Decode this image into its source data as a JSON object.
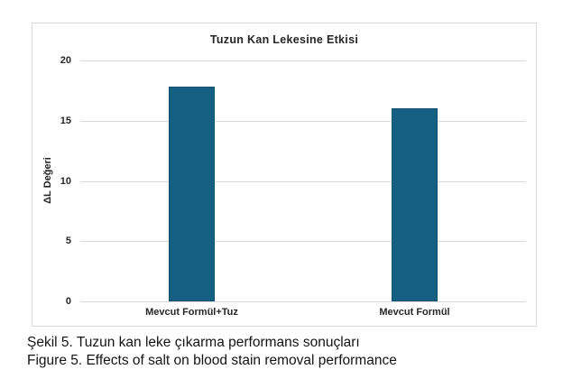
{
  "figure": {
    "caption_line1": "Şekil 5. Tuzun kan leke çıkarma performans sonuçları",
    "caption_line2": "Figure 5. Effects of salt on blood stain removal performance"
  },
  "chart_data": {
    "type": "bar",
    "title": "Tuzun Kan Lekesine Etkisi",
    "categories": [
      "Mevcut Formül+Tuz",
      "Mevcut Formül"
    ],
    "values": [
      17.8,
      16
    ],
    "xlabel": "",
    "ylabel": "ΔL Değeri",
    "ylim": [
      0,
      20
    ],
    "yticks": [
      0,
      5,
      10,
      15,
      20
    ],
    "grid": true,
    "legend": false,
    "bar_color": "#156082",
    "gridline_color": "#d9d9d9",
    "panel_border_color": "#d9d9d9",
    "text_color": "#262626"
  }
}
